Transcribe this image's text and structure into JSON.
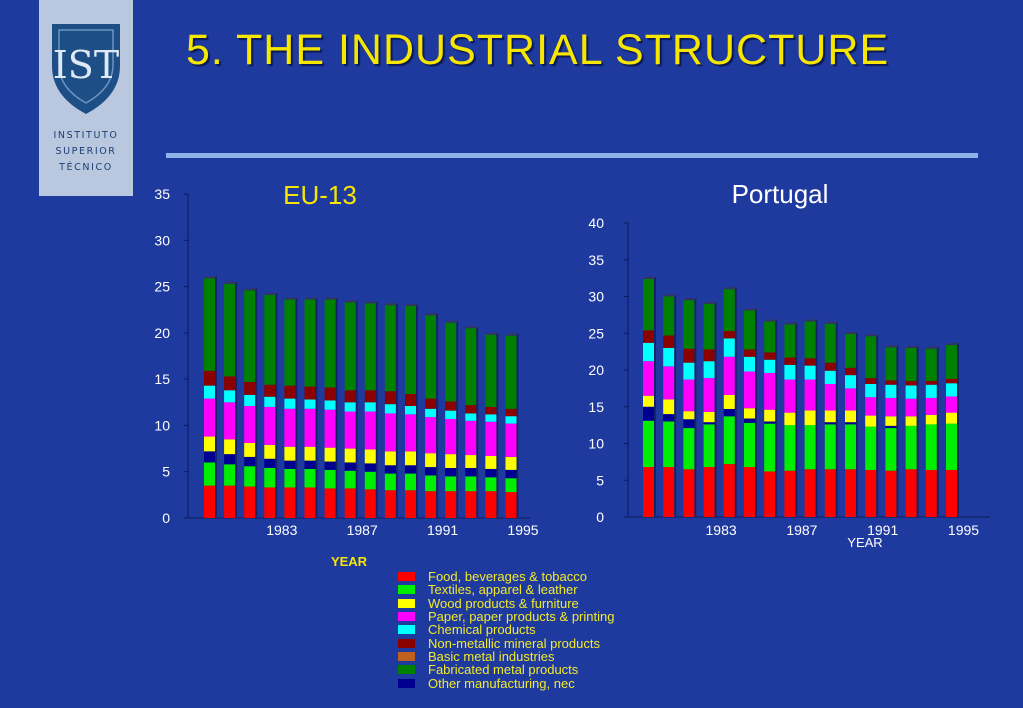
{
  "header": {
    "title": "5. THE  INDUSTRIAL  STRUCTURE"
  },
  "logo": {
    "emblem_text": "IST",
    "lines": [
      "INSTITUTO",
      "SUPERIOR",
      "TÉCNICO"
    ]
  },
  "colors": {
    "background": "#1f3a9e",
    "title": "#f6e600",
    "chart_text_eu": "#f6e600",
    "chart_text_pt": "#ffffff",
    "legend_text": "#f2ea2a"
  },
  "legend": {
    "items": [
      {
        "label": "Food, beverages & tobacco",
        "color": "#ff0000"
      },
      {
        "label": "Textiles, apparel & leather",
        "color": "#00ee00"
      },
      {
        "label": "Wood products & furniture",
        "color": "#ffff00"
      },
      {
        "label": "Paper, paper products & printing",
        "color": "#ff00ff"
      },
      {
        "label": "Chemical products",
        "color": "#00ffff"
      },
      {
        "label": "Non-metallic mineral products",
        "color": "#8b0000"
      },
      {
        "label": "Basic metal industries",
        "color": "#c06020"
      },
      {
        "label": "Fabricated metal products",
        "color": "#008000"
      },
      {
        "label": "Other manufacturing, nec",
        "color": "#000090"
      }
    ]
  },
  "chart_data": [
    {
      "type": "bar",
      "stacked": true,
      "title": "EU-13",
      "xlabel": "YEAR",
      "ylim": [
        0,
        35
      ],
      "yticks": [
        0,
        5,
        10,
        15,
        20,
        25,
        30,
        35
      ],
      "categories": [
        1980,
        1981,
        1982,
        1983,
        1984,
        1985,
        1986,
        1987,
        1988,
        1989,
        1990,
        1991,
        1992,
        1993,
        1994,
        1995
      ],
      "xtick_labels": [
        "",
        "",
        "",
        "1983",
        "",
        "",
        "",
        "1987",
        "",
        "",
        "",
        "1991",
        "",
        "",
        "",
        "1995"
      ],
      "series_order": [
        "food",
        "textiles",
        "other",
        "wood",
        "paper",
        "chemical",
        "nonmetallic",
        "basic",
        "fabricated"
      ],
      "series": [
        {
          "key": "food",
          "color": "#ff0000",
          "values": [
            3.5,
            3.5,
            3.4,
            3.3,
            3.3,
            3.3,
            3.2,
            3.2,
            3.1,
            3.0,
            3.0,
            2.9,
            2.9,
            2.9,
            2.9,
            2.8
          ]
        },
        {
          "key": "textiles",
          "color": "#00ee00",
          "values": [
            2.5,
            2.3,
            2.2,
            2.1,
            2.0,
            2.0,
            2.0,
            1.9,
            1.9,
            1.8,
            1.8,
            1.7,
            1.6,
            1.6,
            1.5,
            1.5
          ]
        },
        {
          "key": "other",
          "color": "#000090",
          "values": [
            1.2,
            1.1,
            1.0,
            1.0,
            0.9,
            0.9,
            0.9,
            0.9,
            0.9,
            0.9,
            0.9,
            0.9,
            0.9,
            0.9,
            0.9,
            0.9
          ]
        },
        {
          "key": "wood",
          "color": "#ffff00",
          "values": [
            1.6,
            1.6,
            1.5,
            1.5,
            1.5,
            1.5,
            1.5,
            1.5,
            1.5,
            1.5,
            1.5,
            1.5,
            1.5,
            1.4,
            1.4,
            1.4
          ]
        },
        {
          "key": "paper",
          "color": "#ff00ff",
          "values": [
            4.1,
            4.0,
            4.0,
            4.1,
            4.1,
            4.1,
            4.1,
            4.0,
            4.1,
            4.1,
            4.0,
            3.9,
            3.8,
            3.7,
            3.7,
            3.6
          ]
        },
        {
          "key": "chemical",
          "color": "#00ffff",
          "values": [
            1.4,
            1.3,
            1.2,
            1.1,
            1.1,
            1.0,
            1.0,
            1.0,
            1.0,
            1.0,
            0.9,
            0.9,
            0.9,
            0.8,
            0.8,
            0.8
          ]
        },
        {
          "key": "nonmetallic",
          "color": "#8b0000",
          "values": [
            1.6,
            1.5,
            1.4,
            1.3,
            1.4,
            1.4,
            1.4,
            1.3,
            1.3,
            1.4,
            1.3,
            1.1,
            1.0,
            0.9,
            0.8,
            0.8
          ]
        },
        {
          "key": "basic",
          "color": "#c06020",
          "values": [
            0,
            0,
            0,
            0,
            0,
            0,
            0,
            0,
            0,
            0,
            0,
            0,
            0,
            0,
            0,
            0
          ]
        },
        {
          "key": "fabricated",
          "color": "#008000",
          "values": [
            10.0,
            10.0,
            9.9,
            9.7,
            9.3,
            9.4,
            9.5,
            9.5,
            9.4,
            9.3,
            9.5,
            9.0,
            8.5,
            8.3,
            7.8,
            7.9
          ]
        }
      ]
    },
    {
      "type": "bar",
      "stacked": true,
      "title": "Portugal",
      "xlabel": "YEAR",
      "ylim": [
        0,
        40
      ],
      "yticks": [
        0,
        5,
        10,
        15,
        20,
        25,
        30,
        35,
        40
      ],
      "categories": [
        1980,
        1981,
        1982,
        1983,
        1984,
        1985,
        1986,
        1987,
        1988,
        1989,
        1990,
        1991,
        1992,
        1993,
        1994,
        1995
      ],
      "xtick_labels": [
        "",
        "",
        "",
        "1983",
        "",
        "",
        "",
        "1987",
        "",
        "",
        "",
        "1991",
        "",
        "",
        "",
        "1995"
      ],
      "series_order": [
        "food",
        "textiles",
        "other",
        "wood",
        "paper",
        "chemical",
        "nonmetallic",
        "basic",
        "fabricated"
      ],
      "series": [
        {
          "key": "food",
          "color": "#ff0000",
          "values": [
            6.8,
            6.8,
            6.5,
            6.8,
            7.2,
            6.8,
            6.2,
            6.3,
            6.5,
            6.5,
            6.5,
            6.4,
            6.3,
            6.5,
            6.4,
            6.4
          ]
        },
        {
          "key": "textiles",
          "color": "#00ee00",
          "values": [
            6.3,
            6.2,
            5.6,
            5.8,
            6.5,
            6.0,
            6.5,
            6.2,
            6.0,
            6.1,
            6.1,
            5.9,
            5.8,
            5.9,
            6.2,
            6.3
          ]
        },
        {
          "key": "other",
          "color": "#000090",
          "values": [
            1.9,
            1.0,
            1.2,
            0.3,
            1.0,
            0.6,
            0.3,
            0,
            0,
            0.3,
            0.3,
            0,
            0.3,
            0,
            0,
            0
          ]
        },
        {
          "key": "wood",
          "color": "#ffff00",
          "values": [
            1.5,
            2.0,
            1.1,
            1.4,
            1.9,
            1.4,
            1.6,
            1.7,
            2.0,
            1.6,
            1.6,
            1.5,
            1.3,
            1.3,
            1.3,
            1.5
          ]
        },
        {
          "key": "paper",
          "color": "#ff00ff",
          "values": [
            4.7,
            4.5,
            4.3,
            4.6,
            5.2,
            5.0,
            5.0,
            4.5,
            4.2,
            3.6,
            3.0,
            2.5,
            2.5,
            2.4,
            2.3,
            2.2
          ]
        },
        {
          "key": "chemical",
          "color": "#00ffff",
          "values": [
            2.5,
            2.5,
            2.3,
            2.3,
            2.5,
            2.0,
            1.8,
            2.0,
            1.9,
            1.8,
            1.8,
            1.8,
            1.8,
            1.8,
            1.8,
            1.8
          ]
        },
        {
          "key": "nonmetallic",
          "color": "#8b0000",
          "values": [
            1.7,
            1.7,
            1.9,
            1.6,
            1.0,
            1.0,
            1.0,
            1.0,
            1.0,
            1.1,
            1.0,
            0.8,
            0.6,
            0.6,
            0.5,
            0.6
          ]
        },
        {
          "key": "basic",
          "color": "#c06020",
          "values": [
            0,
            0,
            0,
            0,
            0,
            0,
            0,
            0,
            0,
            0,
            0,
            0,
            0,
            0,
            0,
            0
          ]
        },
        {
          "key": "fabricated",
          "color": "#008000",
          "values": [
            7.0,
            5.3,
            6.6,
            6.2,
            5.7,
            5.3,
            4.2,
            4.5,
            5.0,
            5.3,
            4.6,
            5.7,
            4.5,
            4.5,
            4.4,
            4.6
          ]
        }
      ]
    }
  ]
}
